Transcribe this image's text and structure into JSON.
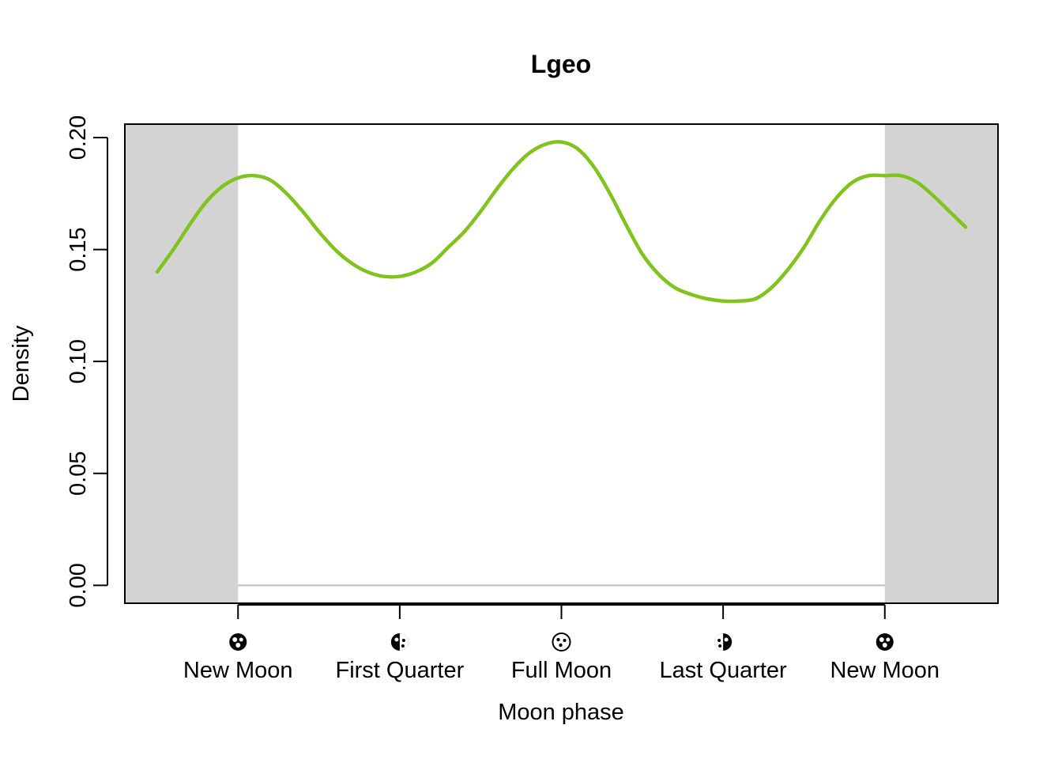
{
  "chart_data": {
    "type": "line",
    "title": "Lgeo",
    "xlabel": "Moon phase",
    "ylabel": "Density",
    "xlim": [
      -0.175,
      1.175
    ],
    "ylim": [
      -0.008,
      0.206
    ],
    "yticks": [
      "0.00",
      "0.05",
      "0.10",
      "0.15",
      "0.20"
    ],
    "ytick_values": [
      0,
      0.05,
      0.1,
      0.15,
      0.2
    ],
    "xticks": [
      {
        "value": 0.0,
        "label": "New Moon",
        "icon": "new-moon-icon"
      },
      {
        "value": 0.25,
        "label": "First Quarter",
        "icon": "first-quarter-icon"
      },
      {
        "value": 0.5,
        "label": "Full Moon",
        "icon": "full-moon-icon"
      },
      {
        "value": 0.75,
        "label": "Last Quarter",
        "icon": "last-quarter-icon"
      },
      {
        "value": 1.0,
        "label": "New Moon",
        "icon": "new-moon-icon"
      }
    ],
    "shaded_regions": [
      [
        -0.175,
        0.0
      ],
      [
        1.0,
        1.175
      ]
    ],
    "shade_color": "#d3d3d3",
    "baseline": {
      "y": 0,
      "x_range": [
        0,
        1
      ],
      "color": "#bebebe"
    },
    "series": [
      {
        "color": "#7fc31c",
        "x": [
          -0.125,
          -0.1,
          -0.075,
          -0.05,
          -0.025,
          0.0,
          0.025,
          0.05,
          0.075,
          0.1,
          0.125,
          0.15,
          0.175,
          0.2,
          0.225,
          0.25,
          0.275,
          0.3,
          0.325,
          0.35,
          0.375,
          0.4,
          0.425,
          0.45,
          0.475,
          0.5,
          0.525,
          0.55,
          0.575,
          0.6,
          0.625,
          0.65,
          0.675,
          0.7,
          0.725,
          0.75,
          0.775,
          0.8,
          0.825,
          0.85,
          0.875,
          0.9,
          0.925,
          0.95,
          0.975,
          1.0,
          1.025,
          1.05,
          1.075,
          1.1,
          1.125
        ],
        "y": [
          0.14,
          0.15,
          0.161,
          0.171,
          0.178,
          0.182,
          0.183,
          0.181,
          0.175,
          0.167,
          0.158,
          0.15,
          0.144,
          0.14,
          0.138,
          0.138,
          0.14,
          0.144,
          0.151,
          0.158,
          0.167,
          0.177,
          0.186,
          0.193,
          0.197,
          0.198,
          0.195,
          0.187,
          0.175,
          0.161,
          0.148,
          0.139,
          0.133,
          0.13,
          0.128,
          0.127,
          0.127,
          0.128,
          0.133,
          0.141,
          0.151,
          0.163,
          0.173,
          0.18,
          0.183,
          0.183,
          0.183,
          0.18,
          0.174,
          0.167,
          0.16
        ]
      }
    ]
  }
}
